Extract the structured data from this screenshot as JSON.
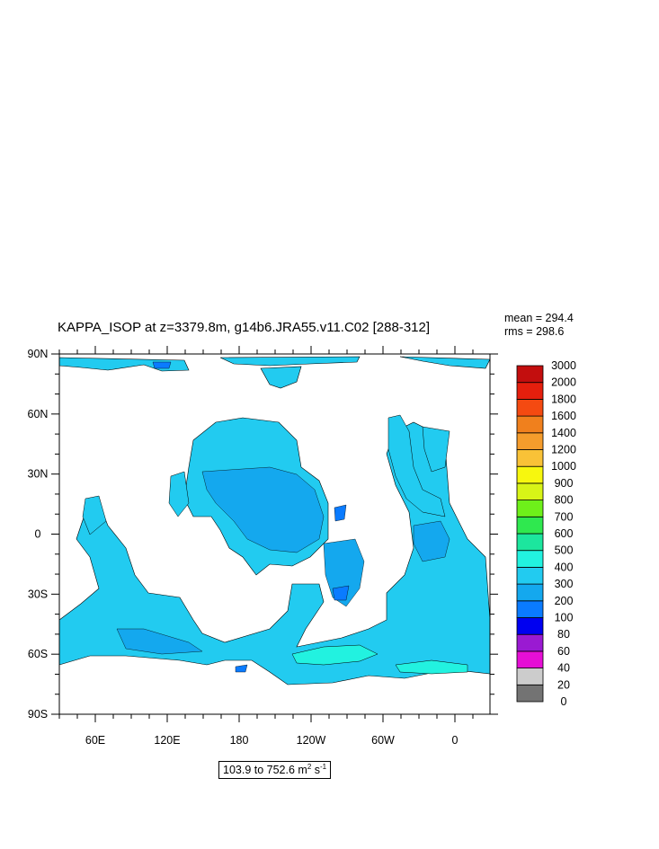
{
  "chart_data": {
    "type": "heatmap",
    "title": "KAPPA_ISOP at z=3379.8m, g14b6.JRA55.v11.C02 [288-312]",
    "stats": {
      "mean": "mean = 294.4",
      "rms": "rms = 298.6"
    },
    "range_label": {
      "prefix": "103.9 to 752.6 m",
      "sup1": "2",
      "mid": " s",
      "sup2": "-1"
    },
    "y_ticks": [
      "90N",
      "60N",
      "30N",
      "0",
      "30S",
      "60S",
      "90S"
    ],
    "x_ticks": [
      "60E",
      "120E",
      "180",
      "120W",
      "60W",
      "0"
    ],
    "colorbar": {
      "levels": [
        "0",
        "20",
        "40",
        "60",
        "80",
        "100",
        "200",
        "300",
        "400",
        "500",
        "600",
        "700",
        "800",
        "900",
        "1000",
        "1200",
        "1400",
        "1600",
        "1800",
        "2000",
        "3000"
      ],
      "colors": [
        "#737373",
        "#cccccc",
        "#e60fd6",
        "#9a1ad2",
        "#0000f0",
        "#0a7bff",
        "#14a8ee",
        "#22cbf0",
        "#22f2e0",
        "#1ce69e",
        "#2fe84f",
        "#6ef01a",
        "#d8f417",
        "#f7f70e",
        "#f9c237",
        "#f59c2c",
        "#f0801d",
        "#f44a11",
        "#e51f0d",
        "#c30e0e"
      ]
    }
  }
}
